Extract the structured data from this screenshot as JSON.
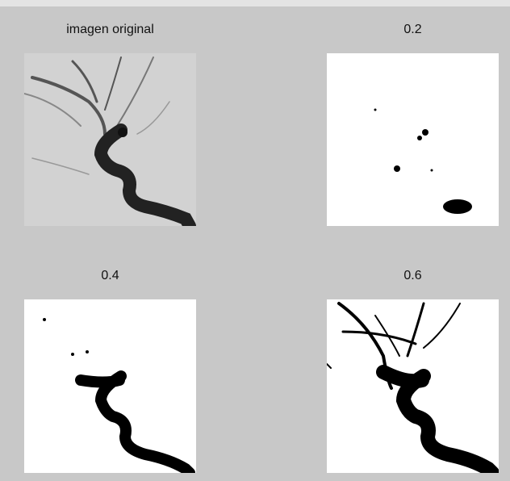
{
  "panels": [
    {
      "title": "imagen original"
    },
    {
      "title": "0.2"
    },
    {
      "title": "0.4"
    },
    {
      "title": "0.6"
    }
  ]
}
